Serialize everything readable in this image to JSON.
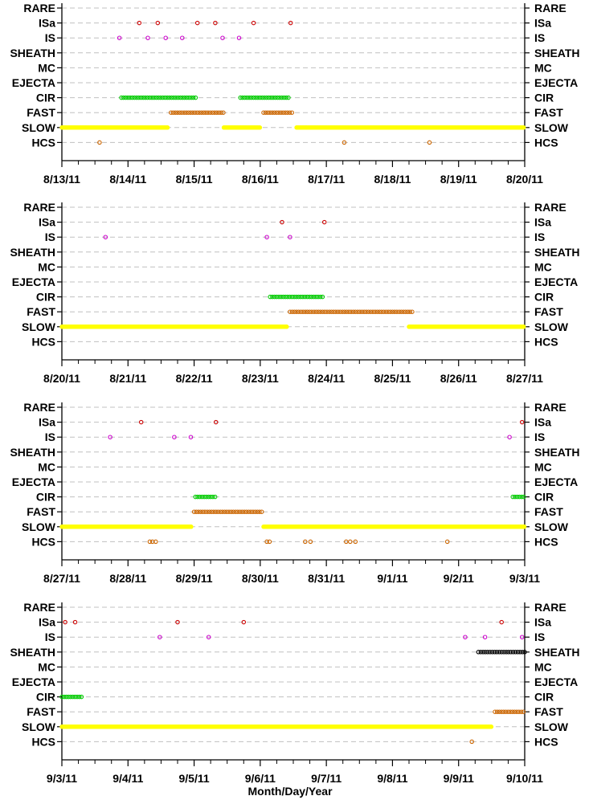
{
  "chart_data": {
    "type": "scatter",
    "xlabel": "Month/Day/Year",
    "categories": [
      "RARE",
      "ISa",
      "IS",
      "SHEATH",
      "MC",
      "EJECTA",
      "CIR",
      "FAST",
      "SLOW",
      "HCS"
    ],
    "grid": true,
    "colors": {
      "ISa": "#cc0000",
      "IS": "#cc00cc",
      "SHEATH": "#000000",
      "CIR": "#00cc00",
      "FAST": "#cc6600",
      "SLOW": "#ffff00",
      "HCS": "#cc6600",
      "gridline": "#c0c0c0"
    },
    "panels": [
      {
        "xrange": [
          "8/13/11",
          "8/20/11"
        ],
        "xticks": [
          "8/13/11",
          "8/14/11",
          "8/15/11",
          "8/16/11",
          "8/17/11",
          "8/18/11",
          "8/19/11",
          "8/20/11"
        ],
        "points": {
          "ISa": [
            1.17,
            1.45,
            2.05,
            2.32,
            2.9,
            3.46
          ],
          "IS": [
            0.87,
            1.3,
            1.57,
            1.82,
            2.43,
            2.68
          ],
          "HCS": [
            0.57,
            4.27,
            5.56
          ]
        },
        "ranges": {
          "CIR": [
            [
              0.9,
              2.05
            ],
            [
              2.7,
              3.45
            ]
          ],
          "FAST": [
            [
              1.65,
              2.45
            ],
            [
              3.05,
              3.5
            ]
          ],
          "SLOW": [
            [
              0,
              1.6
            ],
            [
              2.45,
              3.0
            ],
            [
              3.55,
              7.0
            ]
          ]
        }
      },
      {
        "xrange": [
          "8/20/11",
          "8/27/11"
        ],
        "xticks": [
          "8/20/11",
          "8/21/11",
          "8/22/11",
          "8/23/11",
          "8/24/11",
          "8/25/11",
          "8/26/11",
          "8/27/11"
        ],
        "points": {
          "ISa": [
            3.33,
            3.97
          ],
          "IS": [
            0.66,
            3.1,
            3.45
          ]
        },
        "ranges": {
          "CIR": [
            [
              3.15,
              3.97
            ]
          ],
          "FAST": [
            [
              3.45,
              5.3
            ]
          ],
          "SLOW": [
            [
              0,
              3.4
            ],
            [
              5.25,
              7.0
            ]
          ]
        }
      },
      {
        "xrange": [
          "8/27/11",
          "9/3/11"
        ],
        "xticks": [
          "8/27/11",
          "8/28/11",
          "8/29/11",
          "8/30/11",
          "8/31/11",
          "9/1/11",
          "9/2/11",
          "9/3/11"
        ],
        "points": {
          "ISa": [
            1.2,
            2.33,
            6.96
          ],
          "IS": [
            0.73,
            1.7,
            1.95,
            6.77
          ],
          "HCS": [
            1.33,
            1.37,
            1.42,
            3.1,
            3.14,
            3.68,
            3.76,
            4.3,
            4.36,
            4.44,
            5.83
          ]
        },
        "ranges": {
          "CIR": [
            [
              2.02,
              2.33
            ],
            [
              6.82,
              7.0
            ]
          ],
          "FAST": [
            [
              2.0,
              3.05
            ]
          ],
          "SLOW": [
            [
              0,
              1.97
            ],
            [
              3.05,
              7.0
            ]
          ]
        }
      },
      {
        "xrange": [
          "9/3/11",
          "9/10/11"
        ],
        "xticks": [
          "9/3/11",
          "9/4/11",
          "9/5/11",
          "9/6/11",
          "9/7/11",
          "9/8/11",
          "9/9/11",
          "9/10/11"
        ],
        "points": {
          "ISa": [
            0.05,
            0.2,
            1.75,
            2.75,
            6.65
          ],
          "IS": [
            1.48,
            2.22,
            6.1,
            6.4,
            6.96
          ],
          "HCS": [
            6.2
          ]
        },
        "ranges": {
          "SHEATH": [
            [
              6.3,
              7.0
            ]
          ],
          "CIR": [
            [
              0,
              0.3
            ]
          ],
          "FAST": [
            [
              6.55,
              7.0
            ]
          ],
          "SLOW": [
            [
              0,
              6.5
            ]
          ]
        }
      }
    ]
  }
}
